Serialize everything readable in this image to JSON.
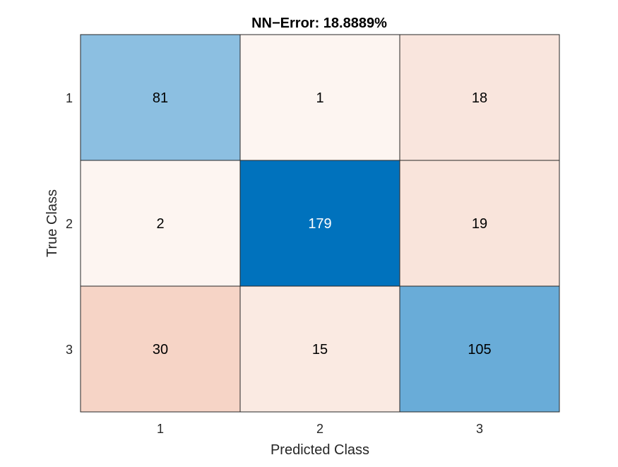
{
  "chart_data": {
    "type": "heatmap",
    "title": "NN−Error:  18.8889%",
    "xlabel": "Predicted Class",
    "ylabel": "True Class",
    "x_categories": [
      "1",
      "2",
      "3"
    ],
    "y_categories": [
      "1",
      "2",
      "3"
    ],
    "matrix": [
      [
        81,
        1,
        18
      ],
      [
        2,
        179,
        19
      ],
      [
        30,
        15,
        105
      ]
    ],
    "colors": {
      "diagonal_strong": "#0072BD",
      "diagonal_light": "#FFFFFF",
      "offdiag_strong": "#D95319",
      "offdiag_light": "#FFFFFF",
      "light_text": "#FFFFFF",
      "dark_text": "#000000"
    }
  }
}
